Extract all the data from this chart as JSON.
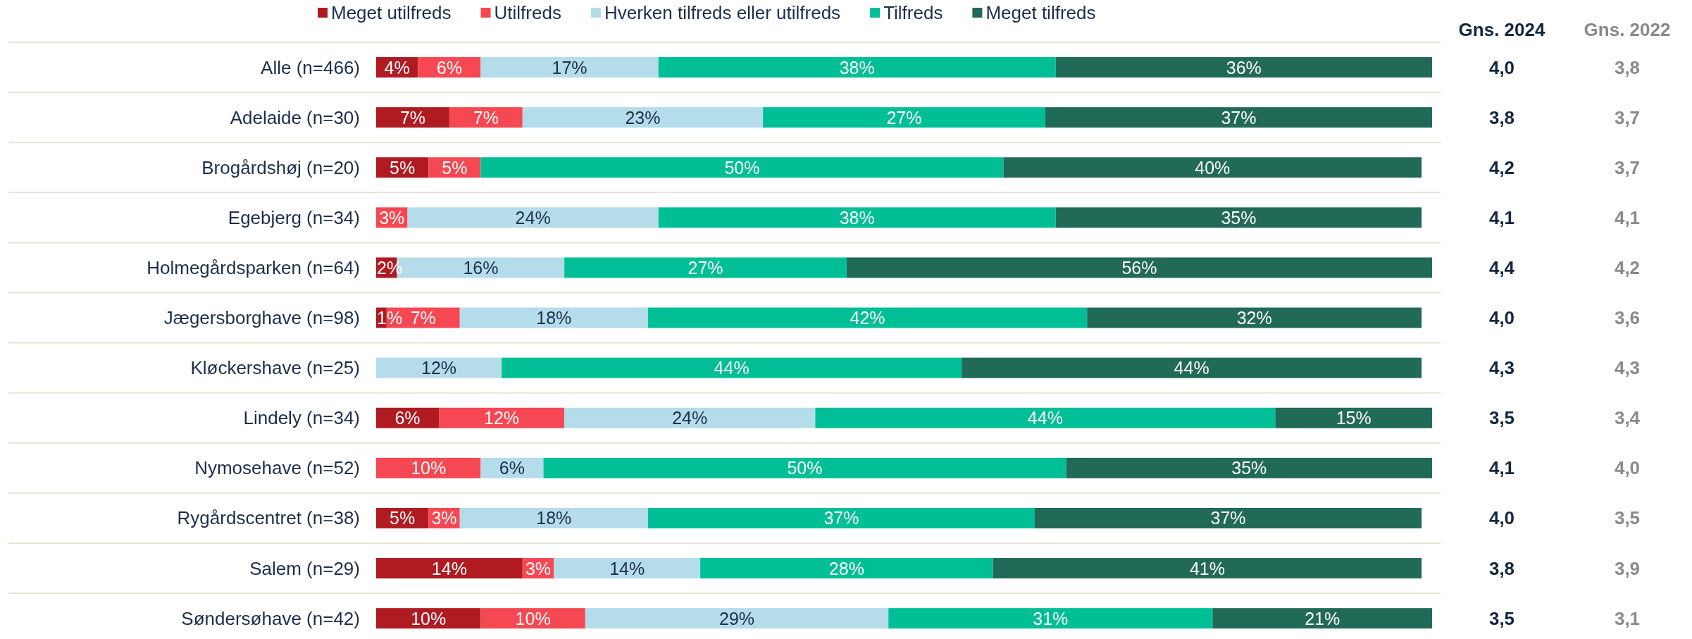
{
  "chart_data": [
    {
      "type": "bar",
      "orientation": "horizontal",
      "stacked": true,
      "categories": [
        "Alle (n=466)",
        "Adelaide (n=30)",
        "Brogårdshøj (n=20)",
        "Egebjerg (n=34)",
        "Holmegårdsparken (n=64)",
        "Jægersborghave (n=98)",
        "Kløckershave (n=25)",
        "Lindely (n=34)",
        "Nymosehave (n=52)",
        "Rygårdscentret (n=38)",
        "Salem (n=29)",
        "Søndersøhave (n=42)"
      ],
      "series": [
        {
          "name": "Meget utilfreds",
          "color": "#b01b22",
          "values": [
            4,
            7,
            5,
            null,
            2,
            1,
            null,
            6,
            null,
            5,
            14,
            10
          ],
          "value_labels": [
            "4%",
            "7%",
            "5%",
            null,
            "2%",
            "1%",
            null,
            "6%",
            null,
            "5%",
            "14%",
            "10%"
          ]
        },
        {
          "name": "Utilfreds",
          "color": "#f64852",
          "values": [
            6,
            7,
            5,
            3,
            null,
            7,
            null,
            12,
            10,
            3,
            3,
            10
          ],
          "value_labels": [
            "6%",
            "7%",
            "5%",
            "3%",
            null,
            "7%",
            null,
            "12%",
            "10%",
            "3%",
            "3%",
            "10%"
          ]
        },
        {
          "name": "Hverken tilfreds eller utilfreds",
          "color": "#b5dcea",
          "values": [
            17,
            23,
            null,
            24,
            16,
            18,
            12,
            24,
            6,
            18,
            14,
            29
          ],
          "value_labels": [
            "17%",
            "23%",
            null,
            "24%",
            "16%",
            "18%",
            "12%",
            "24%",
            "6%",
            "18%",
            "14%",
            "29%"
          ]
        },
        {
          "name": "Tilfreds",
          "color": "#00bf96",
          "values": [
            38,
            27,
            50,
            38,
            27,
            42,
            44,
            44,
            50,
            37,
            28,
            31
          ],
          "value_labels": [
            "38%",
            "27%",
            "50%",
            "38%",
            "27%",
            "42%",
            "44%",
            "44%",
            "50%",
            "37%",
            "28%",
            "31%"
          ]
        },
        {
          "name": "Meget tilfreds",
          "color": "#226a58",
          "values": [
            36,
            37,
            40,
            35,
            56,
            32,
            44,
            15,
            35,
            37,
            41,
            21
          ],
          "value_labels": [
            "36%",
            "37%",
            "40%",
            "35%",
            "56%",
            "32%",
            "44%",
            "15%",
            "35%",
            "37%",
            "41%",
            "21%"
          ]
        }
      ],
      "xlim": [
        0,
        101
      ],
      "tick_labels": "y",
      "grid": "y",
      "legend": "top"
    },
    {
      "type": "other",
      "title": "Gns. 2024",
      "color": "#14263f",
      "annotations": [
        "4,0",
        "3,8",
        "4,2",
        "4,1",
        "4,4",
        "4,0",
        "4,3",
        "3,5",
        "4,1",
        "4,0",
        "3,8",
        "3,5"
      ]
    },
    {
      "type": "other",
      "title": "Gns. 2022",
      "color": "#8a8a8a",
      "annotations": [
        "3,8",
        "3,7",
        "3,7",
        "4,1",
        "4,2",
        "3,6",
        "4,3",
        "3,4",
        "4,0",
        "3,5",
        "3,9",
        "3,1"
      ]
    }
  ]
}
